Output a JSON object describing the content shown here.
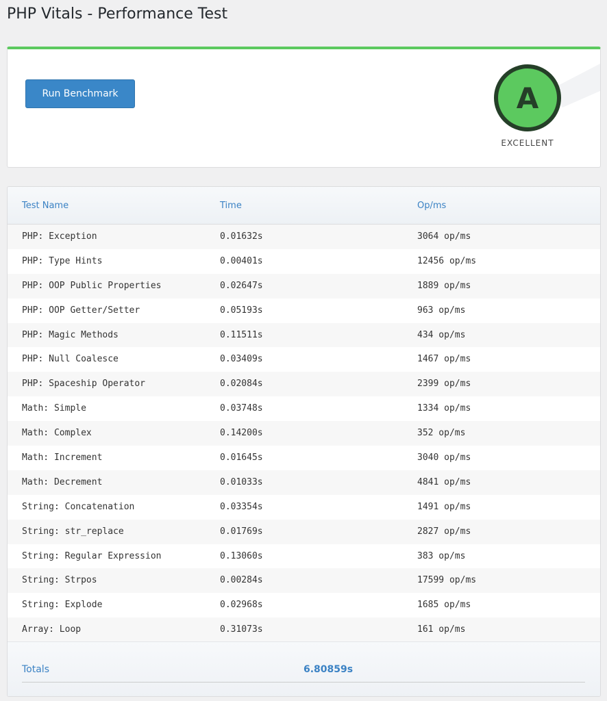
{
  "header": {
    "title": "PHP Vitals - Performance Test"
  },
  "benchmark": {
    "button": "Run Benchmark",
    "grade": "A",
    "grade_label": "EXCELLENT"
  },
  "table": {
    "headers": [
      "Test Name",
      "Time",
      "Op/ms"
    ],
    "rows": [
      [
        "PHP: Exception",
        "0.01632s",
        "3064 op/ms"
      ],
      [
        "PHP: Type Hints",
        "0.00401s",
        "12456 op/ms"
      ],
      [
        "PHP: OOP Public Properties",
        "0.02647s",
        "1889 op/ms"
      ],
      [
        "PHP: OOP Getter/Setter",
        "0.05193s",
        "963 op/ms"
      ],
      [
        "PHP: Magic Methods",
        "0.11511s",
        "434 op/ms"
      ],
      [
        "PHP: Null Coalesce",
        "0.03409s",
        "1467 op/ms"
      ],
      [
        "PHP: Spaceship Operator",
        "0.02084s",
        "2399 op/ms"
      ],
      [
        "Math: Simple",
        "0.03748s",
        "1334 op/ms"
      ],
      [
        "Math: Complex",
        "0.14200s",
        "352 op/ms"
      ],
      [
        "Math: Increment",
        "0.01645s",
        "3040 op/ms"
      ],
      [
        "Math: Decrement",
        "0.01033s",
        "4841 op/ms"
      ],
      [
        "String: Concatenation",
        "0.03354s",
        "1491 op/ms"
      ],
      [
        "String: str_replace",
        "0.01769s",
        "2827 op/ms"
      ],
      [
        "String: Regular Expression",
        "0.13060s",
        "383 op/ms"
      ],
      [
        "String: Strpos",
        "0.00284s",
        "17599 op/ms"
      ],
      [
        "String: Explode",
        "0.02968s",
        "1685 op/ms"
      ],
      [
        "Array: Loop",
        "0.31073s",
        "161 op/ms"
      ]
    ],
    "totals": {
      "label": "Totals",
      "value": "6.80859s"
    }
  }
}
